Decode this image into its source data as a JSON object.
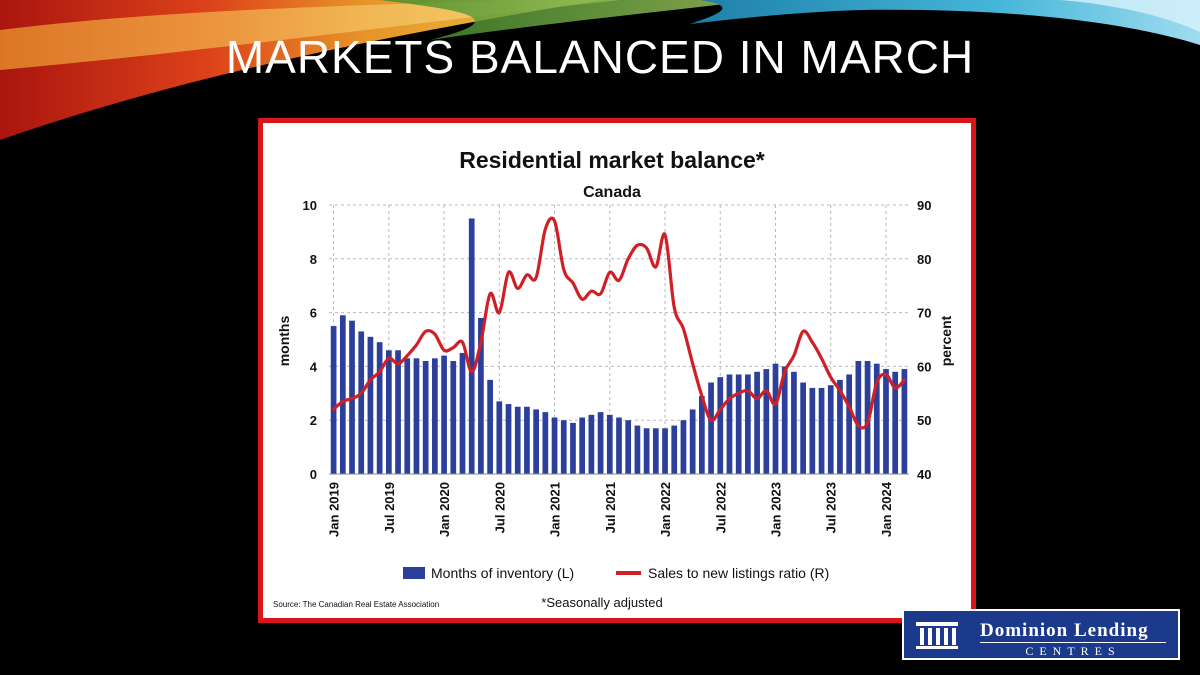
{
  "slide": {
    "title": "MARKETS BALANCED IN MARCH"
  },
  "logo": {
    "line1": "Dominion Lending",
    "line2": "CENTRES"
  },
  "chart_data": {
    "type": "bar+line",
    "title": "Residential market balance*",
    "subtitle": "Canada",
    "left_axis": {
      "label": "months",
      "ylim": [
        0,
        10
      ],
      "ticks": [
        0,
        2,
        4,
        6,
        8,
        10
      ]
    },
    "right_axis": {
      "label": "percent",
      "ylim": [
        40,
        90
      ],
      "ticks": [
        40,
        50,
        60,
        70,
        80,
        90
      ]
    },
    "x_tick_labels": [
      "Jan 2019",
      "Jul 2019",
      "Jan 2020",
      "Jul 2020",
      "Jan 2021",
      "Jul 2021",
      "Jan 2022",
      "Jul 2022",
      "Jan 2023",
      "Jul 2023",
      "Jan 2024"
    ],
    "x_tick_index": [
      0,
      6,
      12,
      18,
      24,
      30,
      36,
      42,
      48,
      54,
      60
    ],
    "grid": true,
    "legend_position": "bottom",
    "source": "Source: The Canadian Real Estate Association",
    "footnote": "*Seasonally adjusted",
    "colors": {
      "bars": "#2b3f9b",
      "line": "#cf2027",
      "grid": "#b9b9b9",
      "frame": "#d8161a"
    },
    "series": [
      {
        "name": "Months of inventory (L)",
        "type": "bar",
        "axis": "left",
        "start": "Jan 2019",
        "frequency": "monthly",
        "values": [
          5.5,
          5.9,
          5.7,
          5.3,
          5.1,
          4.9,
          4.6,
          4.6,
          4.3,
          4.3,
          4.2,
          4.3,
          4.4,
          4.2,
          4.5,
          9.5,
          5.8,
          3.5,
          2.7,
          2.6,
          2.5,
          2.5,
          2.4,
          2.3,
          2.1,
          2.0,
          1.9,
          2.1,
          2.2,
          2.3,
          2.2,
          2.1,
          2.0,
          1.8,
          1.7,
          1.7,
          1.7,
          1.8,
          2.0,
          2.4,
          2.9,
          3.4,
          3.6,
          3.7,
          3.7,
          3.7,
          3.8,
          3.9,
          4.1,
          4.0,
          3.8,
          3.4,
          3.2,
          3.2,
          3.3,
          3.5,
          3.7,
          4.2,
          4.2,
          4.1,
          3.9,
          3.8,
          3.9
        ]
      },
      {
        "name": "Sales to new listings ratio (R)",
        "type": "line",
        "axis": "right",
        "start": "Jan 2019",
        "frequency": "monthly",
        "values": [
          52,
          53.5,
          54,
          55,
          57.5,
          59,
          61.5,
          60.5,
          62,
          64,
          66.5,
          66,
          63,
          63.5,
          64.5,
          59,
          64.5,
          73.5,
          70,
          77.5,
          74.5,
          77,
          76.5,
          85.5,
          87,
          78,
          75.5,
          72.5,
          74,
          73.5,
          77.5,
          76,
          80,
          82.5,
          82,
          78.5,
          84.5,
          71,
          67,
          60.5,
          54.5,
          50,
          52,
          54,
          55,
          55.5,
          54,
          55.5,
          53,
          59,
          62,
          66.5,
          64.5,
          61.5,
          58,
          55.5,
          52.5,
          49,
          49.5,
          57,
          58.5,
          56,
          57.5
        ]
      }
    ]
  }
}
